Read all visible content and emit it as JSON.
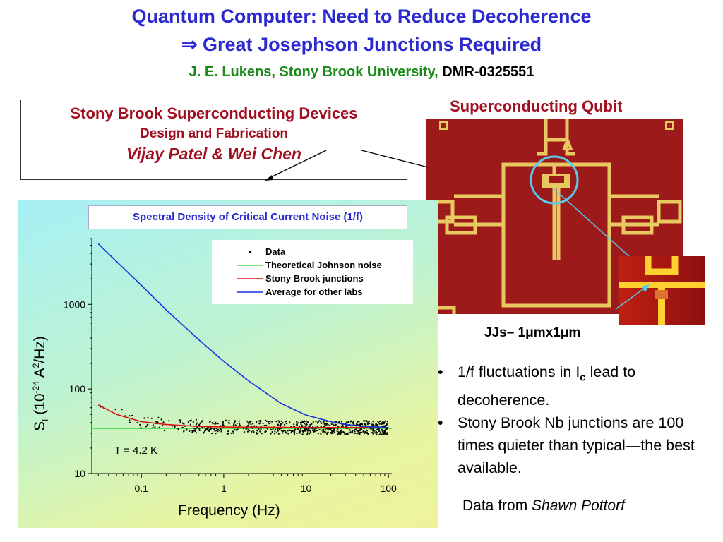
{
  "header": {
    "title_line1": "Quantum Computer: Need to Reduce Decoherence",
    "title_line2": "⇒ Great Josephson Junctions Required",
    "author": "J. E. Lukens, Stony Brook University,",
    "grant": "DMR-0325551"
  },
  "lab_box": {
    "name": "Stony Brook Superconducting Devices",
    "subtitle": "Design and Fabrication",
    "people": "Vijay Patel & Wei Chen"
  },
  "qubit": {
    "title": "Superconducting Qubit",
    "delta_symbol": "Δ",
    "jj_label": "JJs– 1μmx1μm"
  },
  "bullets": [
    {
      "text_before": "1/f fluctuations in I",
      "subscript": "c",
      "text_after": " lead to decoherence."
    },
    {
      "text_before": "Stony Brook Nb junctions are 100 times quieter than typical—the best available.",
      "subscript": "",
      "text_after": ""
    }
  ],
  "credit": {
    "prefix": "Data from ",
    "name": "Shawn Pottorf"
  },
  "colors": {
    "title_blue": "#2a2ad0",
    "author_green": "#1a8a1a",
    "lab_red": "#a01020",
    "johnson": "#44dd44",
    "stony": "#dd1111",
    "average": "#1133dd",
    "qubit_bg": "#9c1a1a",
    "gold": "#e8c860",
    "circle": "#55ccee"
  },
  "chart_data": {
    "type": "line",
    "title": "Spectral Density of Critical Current Noise (1/f)",
    "xlabel": "Frequency (Hz)",
    "ylabel_main": "S",
    "ylabel_sub": "I",
    "ylabel_rest": " (10",
    "ylabel_exp1": "-24",
    "ylabel_unit": " A",
    "ylabel_exp2": "2",
    "ylabel_end": "/Hz)",
    "x_scale": "log",
    "y_scale": "log",
    "xlim": [
      0.025,
      110
    ],
    "ylim": [
      10,
      6000
    ],
    "xticks": [
      {
        "v": 0.1,
        "label": "0.1"
      },
      {
        "v": 1,
        "label": "1"
      },
      {
        "v": 10,
        "label": "10"
      },
      {
        "v": 100,
        "label": "100"
      }
    ],
    "yticks": [
      {
        "v": 10,
        "label": "10"
      },
      {
        "v": 100,
        "label": "100"
      },
      {
        "v": 1000,
        "label": "1000"
      }
    ],
    "annotation": "T = 4.2 K",
    "legend_position": "top-right",
    "series": [
      {
        "name": "Data",
        "kind": "scatter",
        "center": 35,
        "spread": 0.08,
        "n": 650
      },
      {
        "name": "Theoretical Johnson noise",
        "kind": "line",
        "x": [
          0.025,
          110
        ],
        "y": [
          34,
          34
        ]
      },
      {
        "name": "Stony Brook junctions",
        "kind": "line",
        "x": [
          0.03,
          0.05,
          0.1,
          0.2,
          0.5,
          1,
          2,
          5,
          10,
          30,
          100
        ],
        "y": [
          65,
          50,
          41,
          38,
          36,
          35.5,
          35.3,
          35.2,
          35,
          35,
          35
        ]
      },
      {
        "name": "Average for other labs",
        "kind": "line",
        "x": [
          0.03,
          0.05,
          0.1,
          0.2,
          0.5,
          1,
          2,
          5,
          10,
          20,
          30,
          50,
          100
        ],
        "y": [
          5200,
          3200,
          1680,
          860,
          380,
          212,
          125,
          67,
          49,
          41,
          38,
          36,
          35
        ]
      }
    ]
  }
}
